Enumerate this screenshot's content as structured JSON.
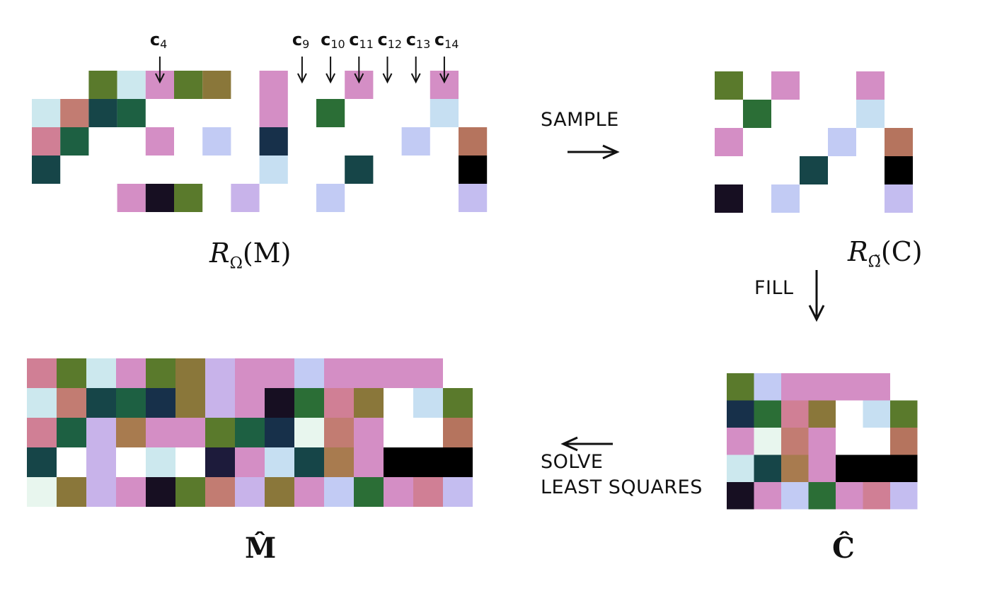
{
  "labels": {
    "sample": "SAMPLE",
    "fill": "FILL",
    "solve_line1": "SOLVE",
    "solve_line2": "LEAST SQUARES"
  },
  "math_labels": {
    "r_omega_m": {
      "cal": "R",
      "sub": "Ω",
      "body": "(M)"
    },
    "r_omegatilde_c": {
      "cal": "R",
      "sub": "Ω̃",
      "body": "(C)"
    },
    "m_hat": "M̂",
    "c_hat": "Ĉ"
  },
  "column_markers": [
    {
      "name": "c",
      "sub": "4",
      "col": 4
    },
    {
      "name": "c",
      "sub": "9",
      "col": 9
    },
    {
      "name": "c",
      "sub": "10",
      "col": 10
    },
    {
      "name": "c",
      "sub": "11",
      "col": 11
    },
    {
      "name": "c",
      "sub": "12",
      "col": 12
    },
    {
      "name": "c",
      "sub": "13",
      "col": 13
    },
    {
      "name": "c",
      "sub": "14",
      "col": 14
    }
  ],
  "colors": {
    "A": "#5a7a2c",
    "B": "#cce8ee",
    "P": "#d48ec5",
    "O": "#8a773a",
    "S": "#c27c72",
    "T": "#164548",
    "G": "#1d6042",
    "R": "#d07f95",
    "L": "#c2cbf4",
    "N": "#17304a",
    "K": "#170f22",
    "V": "#c8b3ea",
    "E": "#2b6e36",
    "W": "#ffffff",
    "X": "#000000",
    "M": "#e8f6ee",
    "H": "#b5745e",
    "Y": "#a87b4f",
    "Q": "#1d1b3b",
    "C": "#c6dff2",
    "D": "#c4bdf0"
  },
  "matrix_observed_M": [
    "..BPAO..P.....",
    ".BSTG...P..E...C.",
    "RG...P.L.N....L.H",
    "T........C...T...X",
    "...PKA.V...L....D"
  ],
  "matrix_observed_M_grid": [
    [
      "",
      "",
      "A",
      "B",
      "P",
      "A",
      "O",
      "",
      "P",
      "",
      "",
      "P",
      "",
      "",
      "P",
      ""
    ],
    [
      "B",
      "S",
      "T",
      "G",
      "",
      "",
      "",
      "",
      "P",
      "",
      "E",
      "",
      "",
      "",
      "C",
      ""
    ],
    [
      "R",
      "G",
      "",
      "",
      "P",
      "",
      "L",
      "",
      "N",
      "",
      "",
      "",
      "",
      "L",
      "",
      "H"
    ],
    [
      "T",
      "",
      "",
      "",
      "",
      "",
      "",
      "",
      "C",
      "",
      "",
      "T",
      "",
      "",
      "",
      "X"
    ],
    [
      "",
      "",
      "",
      "P",
      "K",
      "A",
      "",
      "V",
      "",
      "",
      "L",
      "",
      "",
      "",
      "",
      "D"
    ]
  ],
  "matrix_sampled_C_grid": [
    [
      "A",
      "",
      "P",
      "",
      "",
      "P",
      ""
    ],
    [
      "",
      "E",
      "",
      "",
      "",
      "C",
      ""
    ],
    [
      "P",
      "",
      "",
      "",
      "L",
      "",
      "H"
    ],
    [
      "",
      "",
      "",
      "T",
      "",
      "",
      "X"
    ],
    [
      "K",
      "",
      "L",
      "",
      "",
      "",
      "D"
    ]
  ],
  "matrix_C_hat_grid": [
    [
      "A",
      "L",
      "P",
      "P",
      "P",
      "P",
      ""
    ],
    [
      "N",
      "E",
      "R",
      "O",
      "W",
      "C",
      "A"
    ],
    [
      "P",
      "M",
      "S",
      "P",
      "W",
      "W",
      "H"
    ],
    [
      "B",
      "T",
      "Y",
      "P",
      "X",
      "X",
      "X"
    ],
    [
      "K",
      "P",
      "L",
      "E",
      "P",
      "R",
      "D"
    ]
  ],
  "matrix_M_hat_grid": [
    [
      "R",
      "A",
      "B",
      "P",
      "A",
      "O",
      "V",
      "P",
      "P",
      "L",
      "P",
      "P",
      "P",
      "P",
      ""
    ],
    [
      "B",
      "S",
      "T",
      "G",
      "N",
      "O",
      "V",
      "P",
      "K",
      "E",
      "R",
      "O",
      "W",
      "C",
      "A"
    ],
    [
      "R",
      "G",
      "V",
      "Y",
      "P",
      "P",
      "A",
      "G",
      "N",
      "M",
      "S",
      "P",
      "W",
      "W",
      "H"
    ],
    [
      "T",
      "W",
      "V",
      "W",
      "B",
      "W",
      "Q",
      "P",
      "C",
      "T",
      "Y",
      "P",
      "X",
      "X",
      "X"
    ],
    [
      "M",
      "O",
      "V",
      "P",
      "K",
      "A",
      "S",
      "V",
      "O",
      "P",
      "L",
      "E",
      "P",
      "R",
      "D"
    ]
  ]
}
